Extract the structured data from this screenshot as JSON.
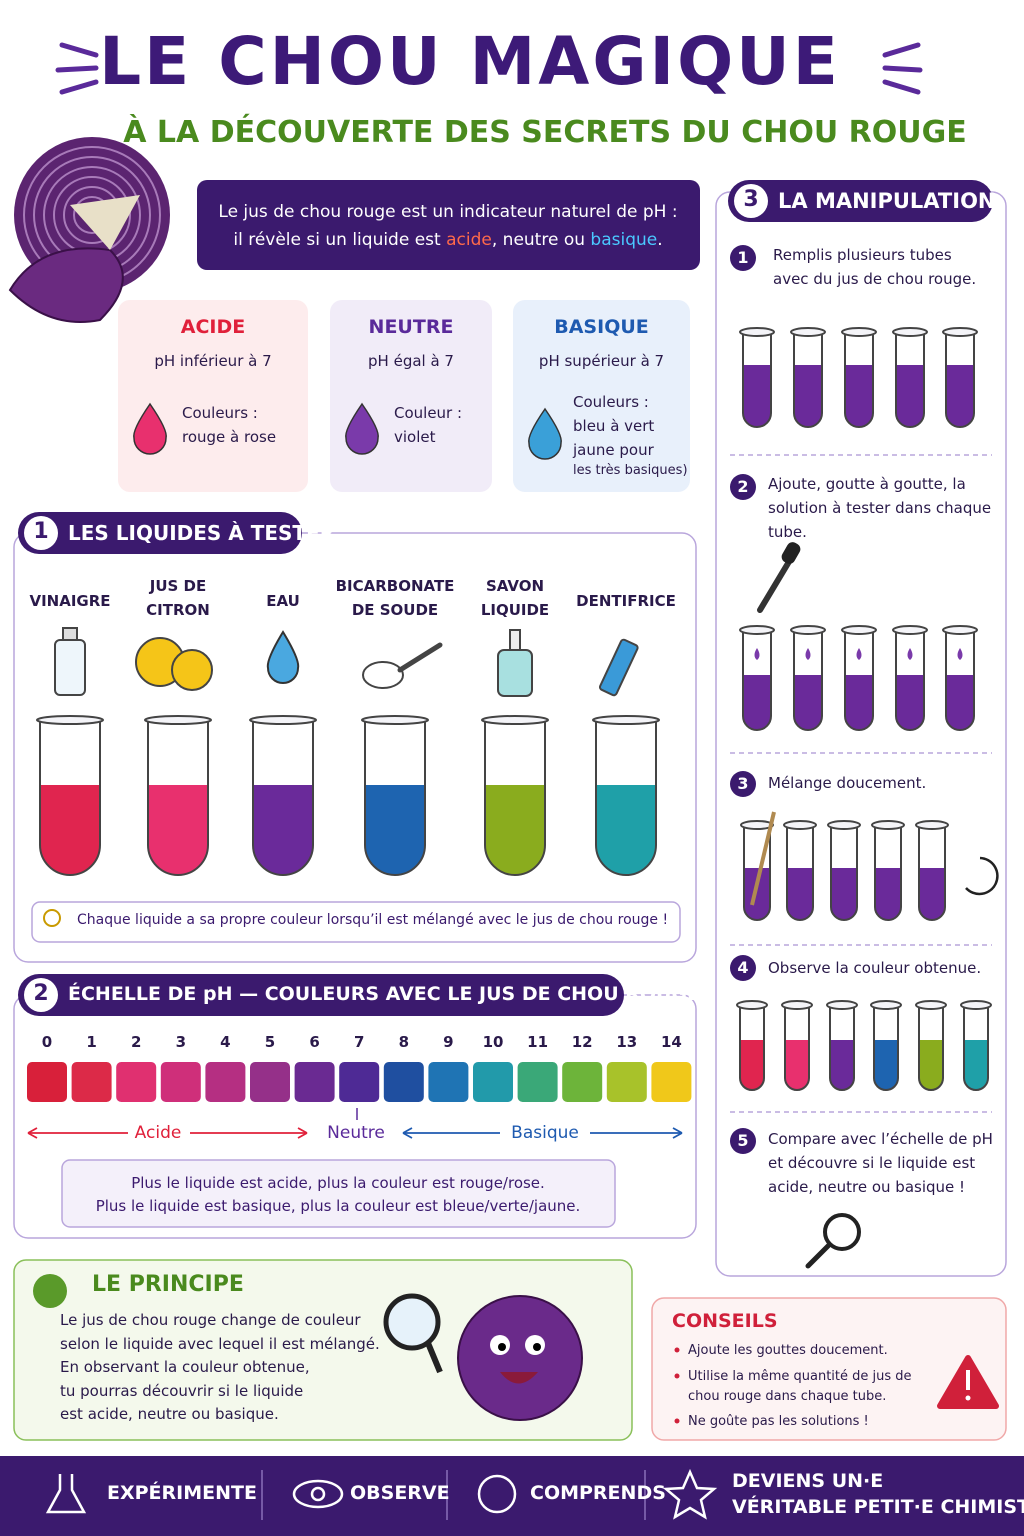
{
  "header": {
    "title": "LE CHOU MAGIQUE",
    "subtitle": "À LA DÉCOUVERTE DES SECRETS DU CHOU ROUGE"
  },
  "intro": {
    "line1": "Le jus de chou rouge est un indicateur naturel de pH :",
    "line2": [
      "il révèle si un liquide est ",
      "acide",
      ", neutre ou ",
      "basique",
      "."
    ]
  },
  "types": [
    {
      "name": "ACIDE",
      "ph": "pH inférieur à 7",
      "colors": [
        "Couleurs :",
        "rouge à rose"
      ]
    },
    {
      "name": "NEUTRE",
      "ph": "pH égal à 7",
      "colors": [
        "Couleur :",
        "violet"
      ]
    },
    {
      "name": "BASIQUE",
      "ph": "pH supérieur à 7",
      "colors": [
        "Couleurs :",
        "bleu à vert",
        "jaune pour",
        "les très basiques)"
      ]
    }
  ],
  "liquids": {
    "number": "1",
    "title": "LES LIQUIDES À TESTER",
    "items": [
      {
        "label": [
          "VINAIGRE"
        ],
        "color": "#e0254f"
      },
      {
        "label": [
          "JUS DE",
          "CITRON"
        ],
        "color": "#e8306e"
      },
      {
        "label": [
          "EAU"
        ],
        "color": "#6a2a9a"
      },
      {
        "label": [
          "BICARBONATE",
          "DE SOUDE"
        ],
        "color": "#1e64b0"
      },
      {
        "label": [
          "SAVON",
          "LIQUIDE"
        ],
        "color": "#8aac1e"
      },
      {
        "label": [
          "DENTIFRICE"
        ],
        "color": "#1fa0a8"
      }
    ],
    "note": "Chaque liquide a sa propre couleur lorsqu’il est mélangé avec le jus de chou rouge !"
  },
  "scale": {
    "number": "2",
    "title": "ÉCHELLE DE pH — COULEURS AVEC LE JUS DE CHOU ROUGE",
    "levels": [
      0,
      1,
      2,
      3,
      4,
      5,
      6,
      7,
      8,
      9,
      10,
      11,
      12,
      13,
      14
    ],
    "colors": [
      "#d8203a",
      "#dc2a48",
      "#e03070",
      "#cf2f7a",
      "#b52f82",
      "#953089",
      "#6a2a92",
      "#4e2a95",
      "#1f4fa0",
      "#1f74b4",
      "#229aaa",
      "#3aa878",
      "#6db43a",
      "#a8c22a",
      "#f0c81a"
    ],
    "acid": "Acide",
    "neutral": "Neutre",
    "basic": "Basique",
    "note": [
      "Plus le liquide est acide, plus la couleur est rouge/rose.",
      "Plus le liquide est basique, plus la couleur est bleue/verte/jaune."
    ]
  },
  "method": {
    "number": "3",
    "title": "LA MANIPULATION",
    "steps": [
      {
        "number": "1",
        "text": [
          "Remplis plusieurs tubes",
          "avec du jus de chou rouge."
        ]
      },
      {
        "number": "2",
        "text": [
          "Ajoute, goutte à goutte, la",
          "solution à tester dans chaque",
          "tube."
        ]
      },
      {
        "number": "3",
        "text": [
          "Mélange doucement."
        ]
      },
      {
        "number": "4",
        "text": [
          "Observe la couleur obtenue."
        ]
      },
      {
        "number": "5",
        "text": [
          "Compare avec l’échelle de pH",
          "et découvre si le liquide est",
          "acide, neutre ou basique !"
        ]
      }
    ]
  },
  "principle": {
    "title": "LE PRINCIPE",
    "text": [
      "Le jus de chou rouge change de couleur",
      "selon le liquide avec lequel il est mélangé.",
      "En observant la couleur obtenue,",
      "tu pourras découvrir si le liquide",
      "est acide, neutre ou basique."
    ]
  },
  "tips": {
    "title": "CONSEILS",
    "items": [
      "Ajoute les gouttes doucement.",
      "Utilise la même quantité de jus de chou rouge dans chaque tube.",
      "Ne goûte pas les solutions !"
    ]
  },
  "footer": [
    [
      "EXPÉRIMENTE"
    ],
    [
      "OBSERVE"
    ],
    [
      "COMPRENDS"
    ],
    [
      "DEVIENS UN·E",
      "VÉRITABLE PETIT·E CHIMISTE !"
    ]
  ]
}
